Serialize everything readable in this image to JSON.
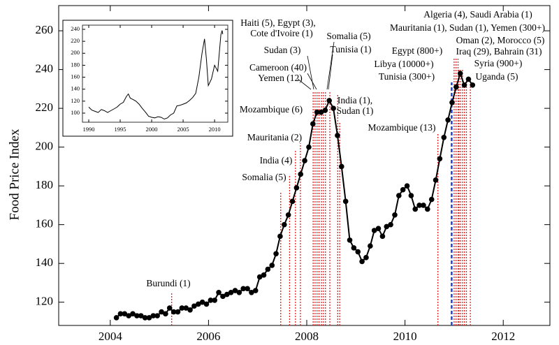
{
  "chart_data": [
    {
      "type": "line",
      "y_label": "Food Price Index",
      "xlim": [
        2002.95,
        2012.95
      ],
      "ylim": [
        108,
        273
      ],
      "xticks": [
        2004,
        2006,
        2008,
        2010,
        2012
      ],
      "yticks": [
        120,
        140,
        160,
        180,
        200,
        220,
        240,
        260
      ],
      "series": [
        {
          "color": "#000000",
          "x": [
            2004.125,
            2004.208,
            2004.292,
            2004.375,
            2004.458,
            2004.542,
            2004.625,
            2004.708,
            2004.792,
            2004.875,
            2004.958,
            2005.042,
            2005.125,
            2005.208,
            2005.292,
            2005.375,
            2005.458,
            2005.542,
            2005.625,
            2005.708,
            2005.792,
            2005.875,
            2005.958,
            2006.042,
            2006.125,
            2006.208,
            2006.292,
            2006.375,
            2006.458,
            2006.542,
            2006.625,
            2006.708,
            2006.792,
            2006.875,
            2006.958,
            2007.042,
            2007.125,
            2007.208,
            2007.292,
            2007.375,
            2007.458,
            2007.542,
            2007.625,
            2007.708,
            2007.792,
            2007.875,
            2007.958,
            2008.042,
            2008.125,
            2008.208,
            2008.292,
            2008.375,
            2008.458,
            2008.542,
            2008.625,
            2008.708,
            2008.792,
            2008.875,
            2008.958,
            2009.042,
            2009.125,
            2009.208,
            2009.292,
            2009.375,
            2009.458,
            2009.542,
            2009.625,
            2009.708,
            2009.792,
            2009.875,
            2009.958,
            2010.042,
            2010.125,
            2010.208,
            2010.292,
            2010.375,
            2010.458,
            2010.542,
            2010.625,
            2010.708,
            2010.792,
            2010.875,
            2010.958,
            2011.042,
            2011.125,
            2011.208,
            2011.292,
            2011.375
          ],
          "values": [
            112,
            114,
            114,
            113,
            114,
            113,
            113,
            112,
            112,
            113,
            113,
            115,
            114,
            117,
            115,
            115,
            117,
            117,
            116,
            118,
            119,
            120,
            119,
            121,
            121,
            125,
            123,
            124,
            125,
            126,
            125,
            127,
            127,
            125,
            126,
            133,
            134,
            137,
            139,
            145,
            154,
            160,
            165,
            172,
            179,
            186,
            193,
            200,
            212,
            218,
            218,
            219,
            224,
            220,
            206,
            190,
            172,
            152,
            148,
            146,
            141,
            143,
            149,
            157,
            158,
            154,
            159,
            160,
            165,
            175,
            178,
            180,
            175,
            168,
            170,
            170,
            168,
            173,
            183,
            194,
            205,
            214,
            223,
            231,
            238,
            232,
            235,
            232
          ]
        }
      ],
      "event_lines": [
        2005.25,
        2007.47,
        2007.65,
        2007.77,
        2007.87,
        2008.13,
        2008.17,
        2008.21,
        2008.25,
        2008.3,
        2008.34,
        2008.38,
        2008.47,
        2008.63,
        2008.67,
        2010.67,
        2011.0,
        2011.04,
        2011.08,
        2011.1,
        2011.13,
        2011.17,
        2011.21,
        2011.25,
        2011.33
      ],
      "event_color": "#e02020",
      "highlight_event": 2010.95,
      "highlight_color": "#2040d0",
      "annotations": [
        "Burundi (1)",
        "Somalia (5)",
        "India (4)",
        "Mauritania (2)",
        "Mozambique (6)",
        "Yemen (12)",
        "Cameroon (40)",
        "Sudan (3)",
        "Haiti (5), Egypt (3),",
        "Cote d'Ivoire (1)",
        "Somalia (5)",
        "Tunisia (1)",
        "India (1),",
        "Sudan (1)",
        "Mozambique (13)",
        "Algeria (4), Saudi Arabia (1)",
        "Mauritania (1), Sudan (1), Yemen (300+)",
        "Egypt (800+)",
        "Oman (2), Morocco (5)",
        "Iraq (29), Bahrain (31)",
        "Libya (10000+)",
        "Syria (900+)",
        "Tunisia (300+)",
        "Uganda (5)"
      ]
    },
    {
      "type": "line",
      "xlim": [
        1989.0,
        2012.1
      ],
      "ylim": [
        84.8,
        247
      ],
      "xticks": [
        1990,
        1995,
        2000,
        2005,
        2010
      ],
      "yticks": [
        100,
        120,
        140,
        160,
        180,
        200,
        220,
        240
      ],
      "series": [
        {
          "color": "#000000",
          "x": [
            1990,
            1990.5,
            1991,
            1991.5,
            1992,
            1992.5,
            1993,
            1993.5,
            1994,
            1994.5,
            1995,
            1995.5,
            1996,
            1996.3,
            1996.6,
            1997,
            1997.5,
            1998,
            1998.5,
            1999,
            1999.5,
            2000,
            2000.5,
            2001,
            2001.5,
            2002,
            2002.5,
            2003,
            2003.5,
            2004,
            2004.5,
            2005,
            2005.5,
            2006,
            2006.5,
            2007,
            2007.5,
            2008,
            2008.4,
            2008.7,
            2009,
            2009.5,
            2010,
            2010.5,
            2011,
            2011.2,
            2011.3
          ],
          "values": [
            110,
            105,
            103,
            101,
            106,
            104,
            101,
            104,
            107,
            110,
            115,
            118,
            128,
            132,
            125,
            123,
            120,
            115,
            108,
            102,
            95,
            93,
            92,
            94,
            93,
            90,
            92,
            97,
            100,
            112,
            113,
            115,
            117,
            121,
            126,
            133,
            160,
            200,
            224,
            190,
            146,
            157,
            180,
            170,
            231,
            238,
            232
          ]
        }
      ]
    }
  ]
}
